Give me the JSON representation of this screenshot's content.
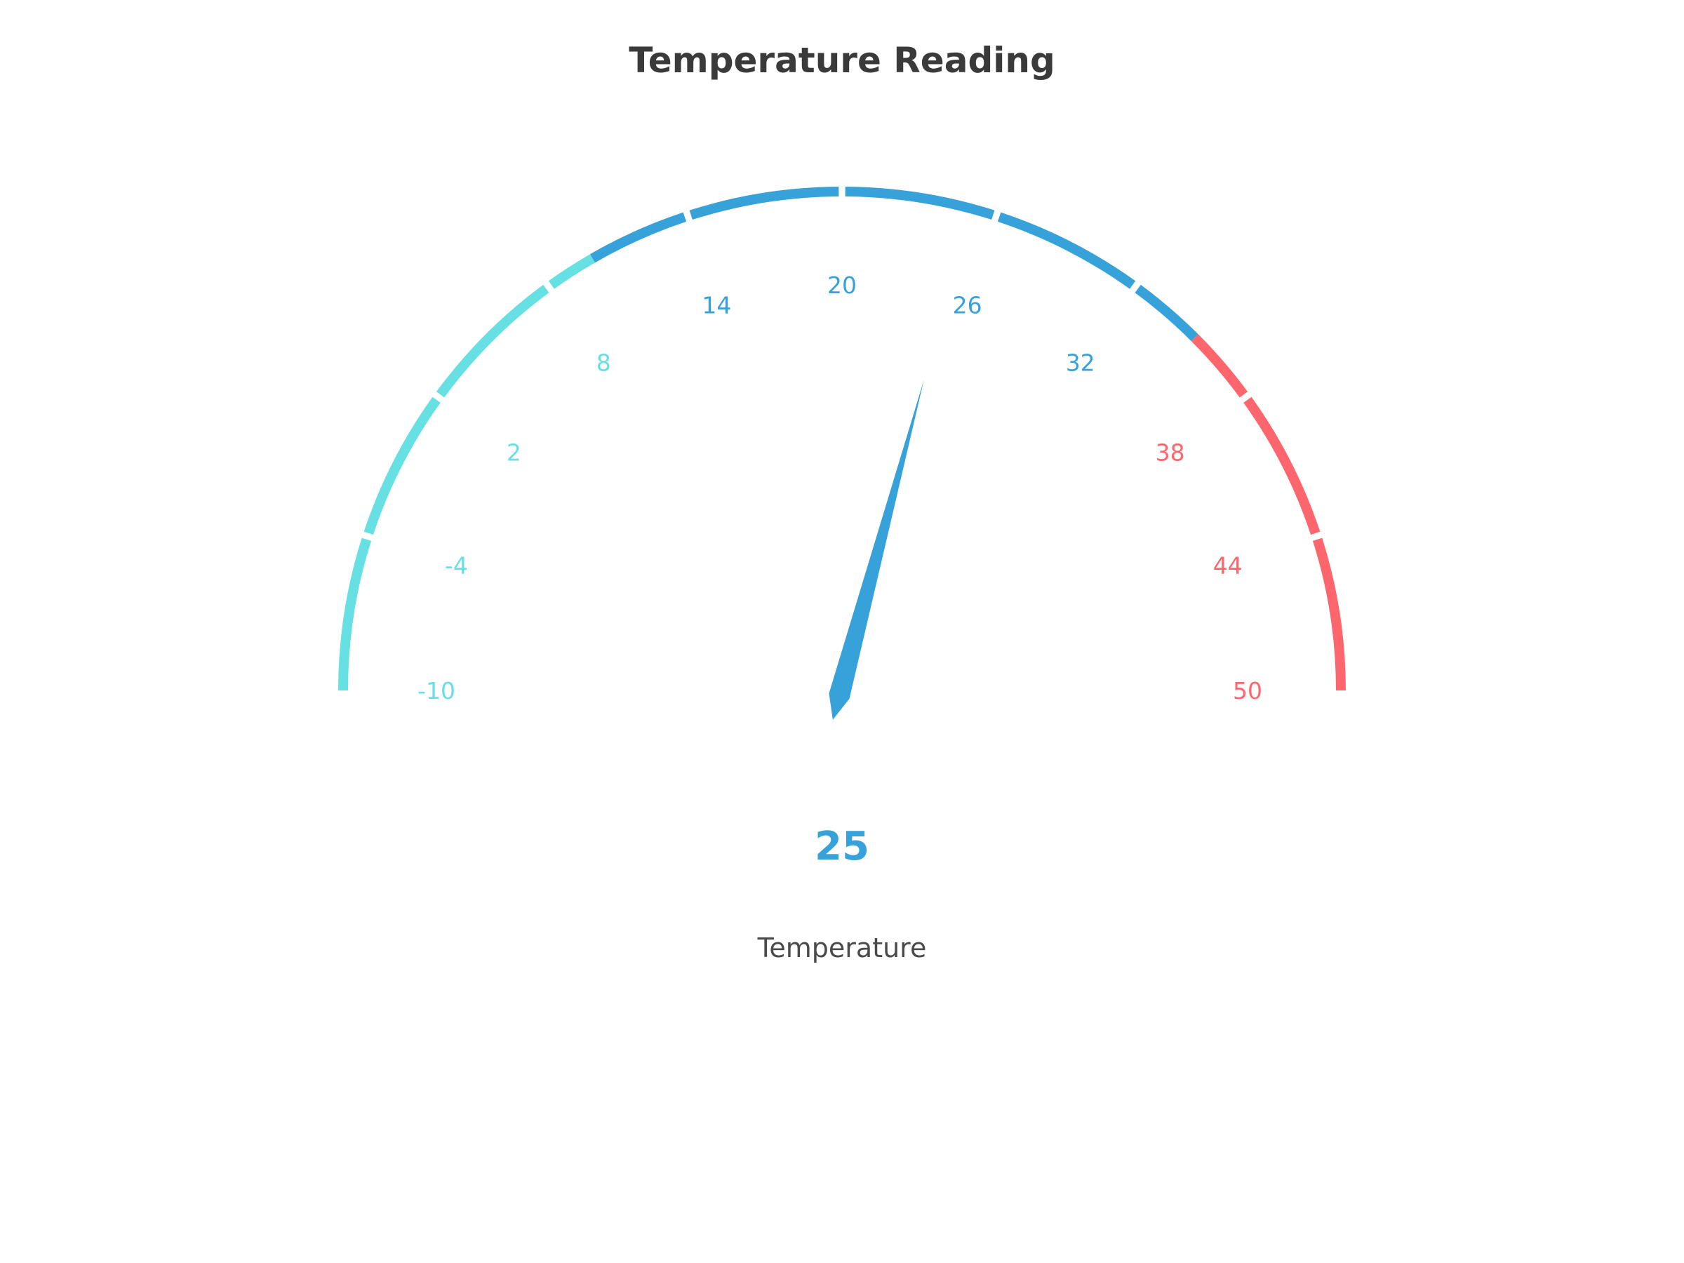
{
  "chart_data": {
    "type": "gauge",
    "title": "Temperature Reading",
    "series_name": "Temperature",
    "value": 25,
    "value_text": "25",
    "min": -10,
    "max": 50,
    "tick_labels": [
      "-10",
      "-4",
      "2",
      "8",
      "14",
      "20",
      "26",
      "32",
      "38",
      "44",
      "50"
    ],
    "bands": [
      {
        "from": -10,
        "to": 10,
        "color": "#67e0e3"
      },
      {
        "from": 10,
        "to": 35,
        "color": "#37a2da"
      },
      {
        "from": 35,
        "to": 50,
        "color": "#fd666d"
      }
    ],
    "pointer_color": "#37a2da",
    "value_color": "#37a2da"
  }
}
